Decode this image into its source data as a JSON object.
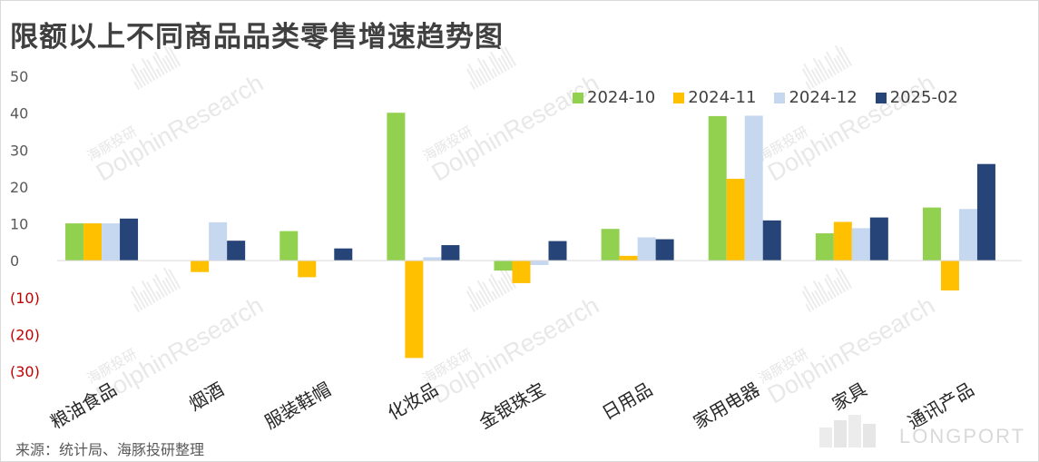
{
  "title": "限额以上不同商品品类零售增速趋势图",
  "source": "来源：统计局、海豚投研整理",
  "watermark_logo": "LONGPORT",
  "watermark_tag": "海豚投研",
  "watermark_text": "DolphinResearch",
  "chart_data": {
    "type": "bar",
    "title": "限额以上不同商品品类零售增速趋势图",
    "xlabel": "",
    "ylabel": "",
    "ylim": [
      -30,
      50
    ],
    "yticks": [
      "50",
      "40",
      "30",
      "20",
      "10",
      "0",
      "(10)",
      "(20)",
      "(30)"
    ],
    "ytick_values": [
      50,
      40,
      30,
      20,
      10,
      0,
      -10,
      -20,
      -30
    ],
    "negative_tick_color": "#c00000",
    "legend_position": "top-right",
    "categories": [
      "粮油食品",
      "烟酒",
      "服装鞋帽",
      "化妆品",
      "金银珠宝",
      "日用品",
      "家用电器",
      "家具",
      "通讯产品"
    ],
    "series": [
      {
        "name": "2024-10",
        "color": "#92d050",
        "values": [
          10.1,
          0.0,
          8.0,
          40.1,
          -2.7,
          8.6,
          39.2,
          7.4,
          14.4
        ]
      },
      {
        "name": "2024-11",
        "color": "#ffc000",
        "values": [
          10.1,
          -3.1,
          -4.5,
          -26.4,
          -6.1,
          1.3,
          22.2,
          10.5,
          -8.1
        ]
      },
      {
        "name": "2024-12",
        "color": "#c5d8f0",
        "values": [
          10.1,
          10.4,
          0.0,
          0.9,
          -1.2,
          6.3,
          39.3,
          8.8,
          14.0
        ]
      },
      {
        "name": "2025-02",
        "color": "#264478",
        "values": [
          11.4,
          5.4,
          3.3,
          4.2,
          5.3,
          5.8,
          10.9,
          11.7,
          26.2
        ]
      }
    ]
  }
}
